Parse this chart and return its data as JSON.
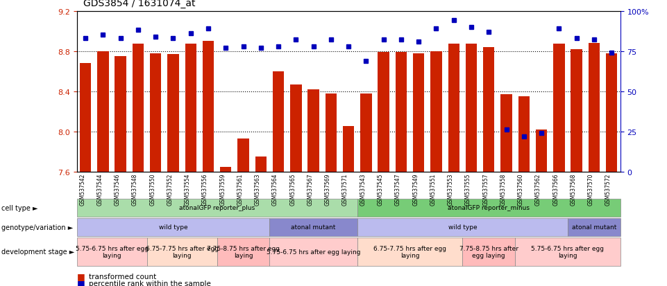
{
  "title": "GDS3854 / 1631074_at",
  "ylim": [
    7.6,
    9.2
  ],
  "yticks": [
    7.6,
    8.0,
    8.4,
    8.8,
    9.2
  ],
  "right_yticks": [
    0,
    25,
    50,
    75,
    100
  ],
  "right_ytick_labels": [
    "0",
    "25",
    "50",
    "75",
    "100%"
  ],
  "samples": [
    "GSM537542",
    "GSM537544",
    "GSM537546",
    "GSM537548",
    "GSM537550",
    "GSM537552",
    "GSM537554",
    "GSM537556",
    "GSM537559",
    "GSM537561",
    "GSM537563",
    "GSM537564",
    "GSM537565",
    "GSM537567",
    "GSM537569",
    "GSM537571",
    "GSM537543",
    "GSM537545",
    "GSM537547",
    "GSM537549",
    "GSM537551",
    "GSM537553",
    "GSM537555",
    "GSM537557",
    "GSM537558",
    "GSM537560",
    "GSM537562",
    "GSM537566",
    "GSM537568",
    "GSM537570",
    "GSM537572"
  ],
  "bar_values": [
    8.68,
    8.8,
    8.75,
    8.87,
    8.78,
    8.77,
    8.87,
    8.9,
    7.65,
    7.93,
    7.75,
    8.6,
    8.47,
    8.42,
    8.38,
    8.05,
    8.38,
    8.79,
    8.79,
    8.78,
    8.8,
    8.87,
    8.87,
    8.84,
    8.37,
    8.35,
    8.02,
    8.87,
    8.82,
    8.88,
    8.78
  ],
  "percentile_values": [
    83,
    85,
    83,
    88,
    84,
    83,
    86,
    89,
    77,
    78,
    77,
    78,
    82,
    78,
    82,
    78,
    69,
    82,
    82,
    81,
    89,
    94,
    90,
    87,
    26,
    22,
    24,
    89,
    83,
    82,
    74
  ],
  "bar_color": "#cc2200",
  "dot_color": "#0000bb",
  "background_color": "#ffffff",
  "tick_label_color": "#cc2200",
  "right_axis_color": "#0000bb",
  "row_label_color": "#000000",
  "cell_type_groups": [
    {
      "label": "atonalGFP reporter_plus",
      "start": 0,
      "end": 15,
      "color": "#aaddaa"
    },
    {
      "label": "atonalGFP reporter_minus",
      "start": 16,
      "end": 30,
      "color": "#77cc77"
    }
  ],
  "genotype_groups": [
    {
      "label": "wild type",
      "start": 0,
      "end": 10,
      "color": "#bbbbee"
    },
    {
      "label": "atonal mutant",
      "start": 11,
      "end": 15,
      "color": "#8888cc"
    },
    {
      "label": "wild type",
      "start": 16,
      "end": 27,
      "color": "#bbbbee"
    },
    {
      "label": "atonal mutant",
      "start": 28,
      "end": 30,
      "color": "#8888cc"
    }
  ],
  "dev_stage_groups": [
    {
      "label": "5.75-6.75 hrs after egg\nlaying",
      "start": 0,
      "end": 3,
      "color": "#ffcccc"
    },
    {
      "label": "6.75-7.75 hrs after egg\nlaying",
      "start": 4,
      "end": 7,
      "color": "#ffddcc"
    },
    {
      "label": "7.75-8.75 hrs after egg\nlaying",
      "start": 8,
      "end": 10,
      "color": "#ffbbbb"
    },
    {
      "label": "5.75-6.75 hrs after egg laying",
      "start": 11,
      "end": 15,
      "color": "#ffcccc"
    },
    {
      "label": "6.75-7.75 hrs after egg\nlaying",
      "start": 16,
      "end": 21,
      "color": "#ffddcc"
    },
    {
      "label": "7.75-8.75 hrs after\negg laying",
      "start": 22,
      "end": 24,
      "color": "#ffbbbb"
    },
    {
      "label": "5.75-6.75 hrs after egg\nlaying",
      "start": 25,
      "end": 30,
      "color": "#ffcccc"
    }
  ],
  "row_labels": [
    "cell type",
    "genotype/variation",
    "development stage"
  ],
  "legend_items": [
    {
      "label": "transformed count",
      "color": "#cc2200"
    },
    {
      "label": "percentile rank within the sample",
      "color": "#0000bb"
    }
  ]
}
